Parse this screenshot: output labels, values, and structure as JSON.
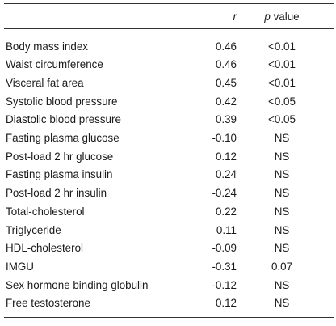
{
  "table": {
    "header": {
      "label": "",
      "r": "r",
      "p_italic": "p",
      "p_rest": " value"
    },
    "rows": [
      {
        "label": "Body mass index",
        "r": "0.46",
        "p": "<0.01"
      },
      {
        "label": "Waist circumference",
        "r": "0.46",
        "p": "<0.01"
      },
      {
        "label": "Visceral fat area",
        "r": "0.45",
        "p": "<0.01"
      },
      {
        "label": "Systolic blood pressure",
        "r": "0.42",
        "p": "<0.05"
      },
      {
        "label": "Diastolic blood pressure",
        "r": "0.39",
        "p": "<0.05"
      },
      {
        "label": "Fasting plasma glucose",
        "r": "-0.10",
        "p": "NS"
      },
      {
        "label": "Post-load 2 hr glucose",
        "r": "0.12",
        "p": "NS"
      },
      {
        "label": "Fasting plasma insulin",
        "r": "0.24",
        "p": "NS"
      },
      {
        "label": "Post-load 2 hr insulin",
        "r": "-0.24",
        "p": "NS"
      },
      {
        "label": "Total-cholesterol",
        "r": "0.22",
        "p": "NS"
      },
      {
        "label": "Triglyceride",
        "r": "0.11",
        "p": "NS"
      },
      {
        "label": "HDL-cholesterol",
        "r": "-0.09",
        "p": "NS"
      },
      {
        "label": "IMGU",
        "r": "-0.31",
        "p": "0.07"
      },
      {
        "label": "Sex hormone binding globulin",
        "r": "-0.12",
        "p": "NS"
      },
      {
        "label": "Free testosterone",
        "r": "0.12",
        "p": "NS"
      }
    ]
  }
}
